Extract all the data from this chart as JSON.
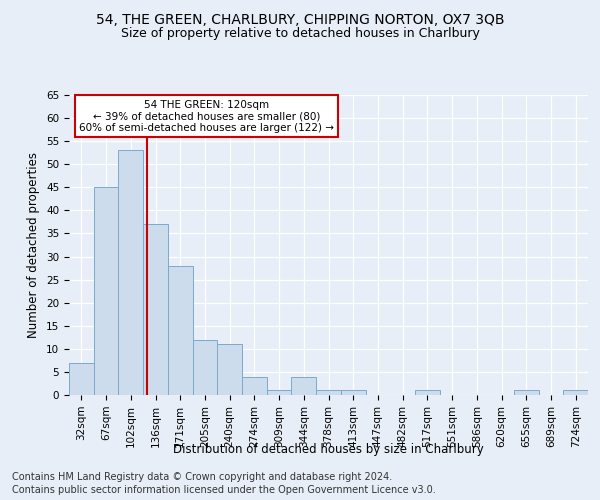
{
  "title1": "54, THE GREEN, CHARLBURY, CHIPPING NORTON, OX7 3QB",
  "title2": "Size of property relative to detached houses in Charlbury",
  "xlabel": "Distribution of detached houses by size in Charlbury",
  "ylabel": "Number of detached properties",
  "footer1": "Contains HM Land Registry data © Crown copyright and database right 2024.",
  "footer2": "Contains public sector information licensed under the Open Government Licence v3.0.",
  "bin_labels": [
    "32sqm",
    "67sqm",
    "102sqm",
    "136sqm",
    "171sqm",
    "205sqm",
    "240sqm",
    "274sqm",
    "309sqm",
    "344sqm",
    "378sqm",
    "413sqm",
    "447sqm",
    "482sqm",
    "517sqm",
    "551sqm",
    "586sqm",
    "620sqm",
    "655sqm",
    "689sqm",
    "724sqm"
  ],
  "bar_values": [
    7,
    45,
    53,
    37,
    28,
    12,
    11,
    4,
    1,
    4,
    1,
    1,
    0,
    0,
    1,
    0,
    0,
    0,
    1,
    0,
    1
  ],
  "bar_color": "#ccdcec",
  "bar_edge_color": "#7aaaca",
  "red_line_x": 2.65,
  "annotation_text": "54 THE GREEN: 120sqm\n← 39% of detached houses are smaller (80)\n60% of semi-detached houses are larger (122) →",
  "annotation_box_color": "#ffffff",
  "annotation_box_edge": "#cc0000",
  "ylim": [
    0,
    65
  ],
  "yticks": [
    0,
    5,
    10,
    15,
    20,
    25,
    30,
    35,
    40,
    45,
    50,
    55,
    60,
    65
  ],
  "background_color": "#e8eef8",
  "plot_bg_color": "#e8eef8",
  "grid_color": "#ffffff",
  "title1_fontsize": 10,
  "title2_fontsize": 9,
  "xlabel_fontsize": 8.5,
  "ylabel_fontsize": 8.5,
  "footer_fontsize": 7,
  "tick_fontsize": 7.5,
  "annot_fontsize": 7.5
}
